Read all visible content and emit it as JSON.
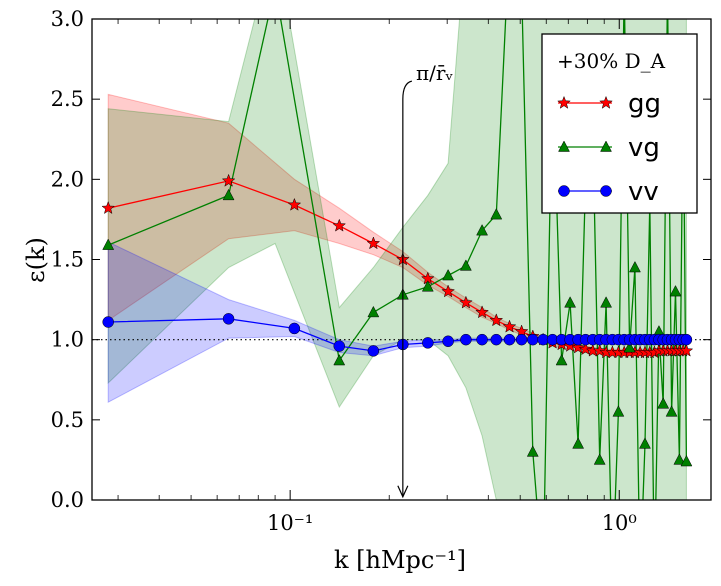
{
  "chart_data": {
    "type": "line",
    "title": "",
    "xlabel": "k  [hMpc⁻¹]",
    "ylabel": "ε(k)",
    "xscale": "log",
    "xlim": [
      0.025,
      1.9
    ],
    "ylim": [
      0.0,
      3.0
    ],
    "x_ticks": [
      0.1,
      1.0
    ],
    "x_tick_labels": [
      "10⁻¹",
      "10⁰"
    ],
    "y_ticks": [
      0.0,
      0.5,
      1.0,
      1.5,
      2.0,
      2.5,
      3.0
    ],
    "y_tick_labels": [
      "0.0",
      "0.5",
      "1.0",
      "1.5",
      "2.0",
      "2.5",
      "3.0"
    ],
    "grid": false,
    "reference_line": {
      "y": 1.0,
      "style": "dotted"
    },
    "annotation": {
      "text": "π/r̄ᵥ",
      "x": 0.22,
      "y_from": 2.6,
      "y_to": 0.02
    },
    "legend": {
      "title": "+30%   D_A",
      "position": "top-right",
      "entries": [
        "gg",
        "vg",
        "vv"
      ]
    },
    "series": [
      {
        "name": "gg",
        "color": "#ff0000",
        "marker": "star",
        "x": [
          0.028,
          0.065,
          0.103,
          0.141,
          0.179,
          0.22,
          0.262,
          0.302,
          0.342,
          0.383,
          0.423,
          0.464,
          0.505,
          0.546,
          0.587,
          0.627,
          0.668,
          0.709,
          0.75,
          0.79,
          0.831,
          0.872,
          0.912,
          0.953,
          0.994,
          1.035,
          1.075,
          1.116,
          1.157,
          1.197,
          1.238,
          1.279,
          1.32,
          1.36,
          1.401,
          1.442,
          1.482,
          1.523,
          1.564,
          1.6
        ],
        "values": [
          1.82,
          1.99,
          1.84,
          1.71,
          1.6,
          1.5,
          1.38,
          1.3,
          1.23,
          1.17,
          1.12,
          1.08,
          1.05,
          1.02,
          1.0,
          0.98,
          0.97,
          0.96,
          0.95,
          0.94,
          0.93,
          0.93,
          0.92,
          0.92,
          0.92,
          0.92,
          0.92,
          0.92,
          0.92,
          0.92,
          0.92,
          0.92,
          0.93,
          0.93,
          0.93,
          0.93,
          0.93,
          0.93,
          0.93,
          0.93
        ],
        "band_upper": [
          2.53,
          2.35,
          2.0,
          1.82,
          1.67,
          1.55,
          1.42,
          1.33,
          1.26,
          1.2,
          1.14,
          1.1,
          1.07,
          1.04,
          1.02,
          1.0,
          0.99,
          0.98,
          0.97,
          0.96,
          0.95,
          0.95,
          0.94,
          0.94,
          0.94,
          0.94,
          0.94,
          0.94,
          0.94,
          0.94,
          0.94,
          0.94,
          0.95,
          0.95,
          0.95,
          0.95,
          0.95,
          0.95,
          0.95,
          0.95
        ],
        "band_lower": [
          1.12,
          1.63,
          1.68,
          1.6,
          1.53,
          1.45,
          1.34,
          1.27,
          1.2,
          1.14,
          1.1,
          1.06,
          1.03,
          1.0,
          0.98,
          0.96,
          0.95,
          0.94,
          0.93,
          0.92,
          0.91,
          0.91,
          0.9,
          0.9,
          0.9,
          0.9,
          0.9,
          0.9,
          0.9,
          0.9,
          0.9,
          0.9,
          0.91,
          0.91,
          0.91,
          0.91,
          0.91,
          0.91,
          0.91,
          0.91
        ]
      },
      {
        "name": "vg",
        "color": "#008000",
        "marker": "triangle",
        "x": [
          0.028,
          0.065,
          0.09,
          0.141,
          0.179,
          0.22,
          0.262,
          0.302,
          0.342,
          0.383,
          0.423,
          0.464,
          0.505,
          0.546,
          0.587,
          0.627,
          0.668,
          0.709,
          0.75,
          0.79,
          0.831,
          0.872,
          0.912,
          0.953,
          0.994,
          1.035,
          1.075,
          1.116,
          1.157,
          1.197,
          1.238,
          1.279,
          1.32,
          1.36,
          1.401,
          1.442,
          1.482,
          1.523,
          1.564,
          1.6
        ],
        "values": [
          1.59,
          1.9,
          3.2,
          0.87,
          1.17,
          1.28,
          1.33,
          1.4,
          1.46,
          1.68,
          1.78,
          3.5,
          3.2,
          0.3,
          -0.5,
          2.7,
          0.87,
          1.23,
          0.35,
          2.0,
          2.3,
          0.25,
          1.23,
          -0.5,
          0.55,
          3.2,
          0.95,
          1.45,
          -0.5,
          0.35,
          1.85,
          -0.5,
          1.05,
          0.6,
          3.2,
          0.55,
          1.3,
          0.25,
          2.6,
          0.24
        ],
        "band_upper": [
          2.44,
          2.36,
          3.5,
          1.2,
          1.45,
          1.7,
          1.9,
          2.1,
          3.5,
          3.5,
          3.5,
          3.5,
          3.5,
          3.5,
          3.5,
          3.5,
          3.5,
          3.5,
          3.5,
          3.5,
          3.5,
          3.5,
          3.5,
          3.5,
          3.5,
          3.5,
          3.5,
          3.5,
          3.5,
          3.5,
          3.5,
          3.5,
          3.5,
          3.5,
          3.5,
          3.5,
          3.5,
          3.5,
          3.5,
          3.5
        ],
        "band_lower": [
          0.73,
          1.45,
          1.6,
          0.58,
          0.9,
          1.0,
          1.0,
          0.9,
          0.7,
          0.4,
          0.0,
          -0.5,
          -0.5,
          -0.5,
          -0.5,
          -0.5,
          -0.5,
          -0.5,
          -0.5,
          -0.5,
          -0.5,
          -0.5,
          -0.5,
          -0.5,
          -0.5,
          -0.5,
          -0.5,
          -0.5,
          -0.5,
          -0.5,
          -0.5,
          -0.5,
          -0.5,
          -0.5,
          -0.5,
          -0.5,
          -0.5,
          -0.5,
          -0.5,
          -0.5
        ]
      },
      {
        "name": "vv",
        "color": "#0000ff",
        "marker": "circle",
        "x": [
          0.028,
          0.065,
          0.103,
          0.141,
          0.179,
          0.22,
          0.262,
          0.302,
          0.342,
          0.383,
          0.423,
          0.464,
          0.505,
          0.546,
          0.587,
          0.627,
          0.668,
          0.709,
          0.75,
          0.79,
          0.831,
          0.872,
          0.912,
          0.953,
          0.994,
          1.035,
          1.075,
          1.116,
          1.157,
          1.197,
          1.238,
          1.279,
          1.32,
          1.36,
          1.401,
          1.442,
          1.482,
          1.523,
          1.564,
          1.6
        ],
        "values": [
          1.11,
          1.13,
          1.07,
          0.96,
          0.93,
          0.97,
          0.98,
          0.99,
          1.0,
          1.0,
          1.0,
          1.0,
          1.0,
          1.0,
          1.0,
          1.0,
          1.0,
          1.0,
          1.0,
          1.0,
          1.0,
          1.0,
          1.0,
          1.0,
          1.0,
          1.0,
          1.0,
          1.0,
          1.0,
          1.0,
          1.0,
          1.0,
          1.0,
          1.0,
          1.0,
          1.0,
          1.0,
          1.0,
          1.0,
          1.0
        ],
        "band_upper": [
          1.61,
          1.25,
          1.12,
          1.0,
          0.96,
          0.99,
          1.0,
          1.0,
          1.01,
          1.01,
          1.01,
          1.01,
          1.01,
          1.01,
          1.01,
          1.01,
          1.01,
          1.01,
          1.01,
          1.01,
          1.01,
          1.01,
          1.01,
          1.01,
          1.01,
          1.01,
          1.01,
          1.01,
          1.01,
          1.01,
          1.01,
          1.01,
          1.01,
          1.01,
          1.01,
          1.01,
          1.01,
          1.01,
          1.01,
          1.01
        ],
        "band_lower": [
          0.61,
          1.01,
          1.02,
          0.92,
          0.9,
          0.95,
          0.96,
          0.98,
          0.99,
          0.99,
          0.99,
          0.99,
          0.99,
          0.99,
          0.99,
          0.99,
          0.99,
          0.99,
          0.99,
          0.99,
          0.99,
          0.99,
          0.99,
          0.99,
          0.99,
          0.99,
          0.99,
          0.99,
          0.99,
          0.99,
          0.99,
          0.99,
          0.99,
          0.99,
          0.99,
          0.99,
          0.99,
          0.99,
          0.99,
          0.99
        ]
      }
    ]
  }
}
